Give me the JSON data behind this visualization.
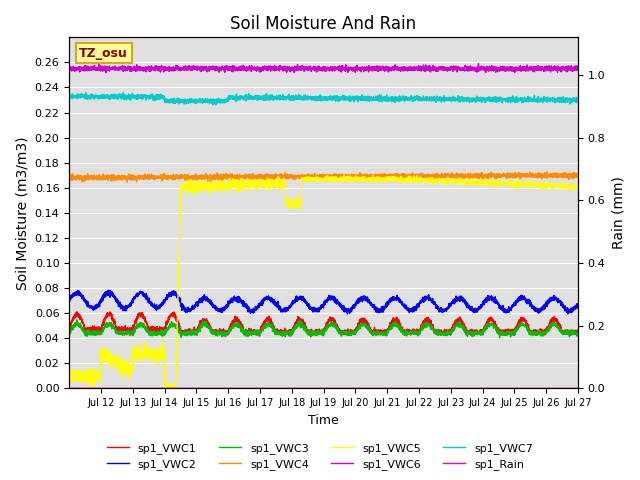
{
  "title": "Soil Moisture And Rain",
  "xlabel": "Time",
  "ylabel_left": "Soil Moisture (m3/m3)",
  "ylabel_right": "Rain (mm)",
  "annotation_text": "TZ_osu",
  "annotation_color": "#8B0000",
  "annotation_bg": "#FFFF99",
  "annotation_border": "#DAA520",
  "num_points": 3600,
  "ylim_left": [
    0.0,
    0.28
  ],
  "ylim_right": [
    0.0,
    1.12
  ],
  "yticks_left": [
    0.0,
    0.02,
    0.04,
    0.06,
    0.08,
    0.1,
    0.12,
    0.14,
    0.16,
    0.18,
    0.2,
    0.22,
    0.24,
    0.26
  ],
  "yticks_right": [
    0.0,
    0.2,
    0.4,
    0.6,
    0.8,
    1.0
  ],
  "xtick_positions": [
    1,
    2,
    3,
    4,
    5,
    6,
    7,
    8,
    9,
    10,
    11,
    12,
    13,
    14,
    15,
    16
  ],
  "xtick_labels": [
    "Jul 12",
    "Jul 13",
    "Jul 14",
    "Jul 15",
    "Jul 16",
    "Jul 17",
    "Jul 18",
    "Jul 19",
    "Jul 20",
    "Jul 21",
    "Jul 22",
    "Jul 23",
    "Jul 24",
    "Jul 25",
    "Jul 26",
    "Jul 27"
  ],
  "colors": {
    "sp1_VWC1": "#FF0000",
    "sp1_VWC2": "#0000FF",
    "sp1_VWC3": "#00BB00",
    "sp1_VWC4": "#FF8C00",
    "sp1_VWC5": "#FFFF00",
    "sp1_VWC6": "#CC00CC",
    "sp1_VWC7": "#00CCCC",
    "sp1_Rain": "#FF00AA"
  },
  "background_color": "#E0E0E0",
  "linewidth": 1.0
}
